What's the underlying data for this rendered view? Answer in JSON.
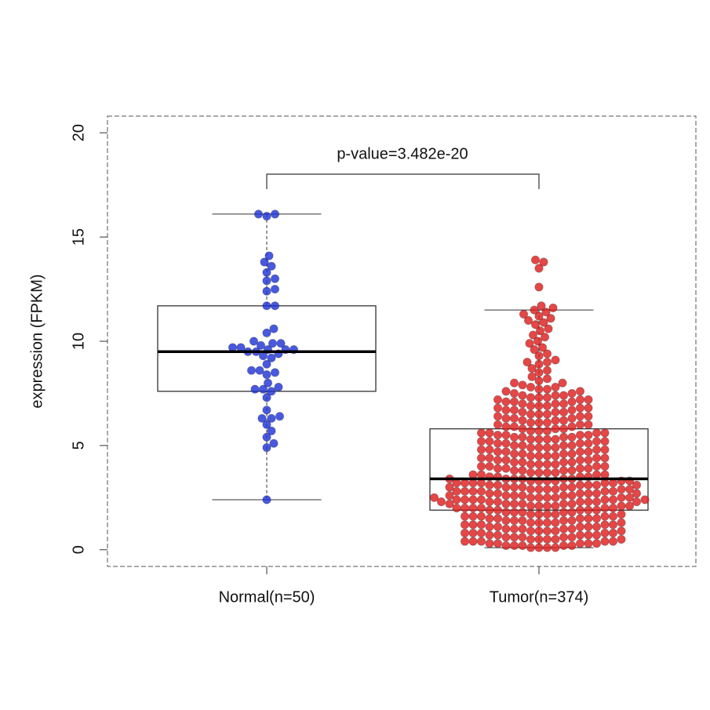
{
  "chart_data": {
    "type": "box",
    "ylabel": "expression (FPKM)",
    "annotation": "p-value=3.482e-20",
    "categories": [
      "Normal(n=50)",
      "Tumor(n=374)"
    ],
    "ylim": [
      -0.8,
      20.8
    ],
    "yticks": [
      0,
      5,
      10,
      15,
      20
    ],
    "series": [
      {
        "color": "#1a2fd8",
        "box": {
          "whisker_low": 2.4,
          "q1": 7.6,
          "median": 9.5,
          "q3": 11.7,
          "whisker_high": 16.1
        },
        "values": [
          16.1,
          16.1,
          16.0,
          14.1,
          13.8,
          13.6,
          13.3,
          13.0,
          12.9,
          12.5,
          12.4,
          11.7,
          11.7,
          10.6,
          10.4,
          10.0,
          9.9,
          9.9,
          9.8,
          9.7,
          9.7,
          9.6,
          9.6,
          9.6,
          9.5,
          9.5,
          9.4,
          9.3,
          9.2,
          8.9,
          8.6,
          8.6,
          8.5,
          8.4,
          8.0,
          7.8,
          7.7,
          7.7,
          7.6,
          7.3,
          6.7,
          6.4,
          6.3,
          6.3,
          6.0,
          5.7,
          5.4,
          5.1,
          4.9,
          2.4
        ]
      },
      {
        "color": "#e01818",
        "box": {
          "whisker_low": 0.1,
          "q1": 1.9,
          "median": 3.4,
          "q3": 5.8,
          "whisker_high": 11.5
        },
        "values": [
          0.1,
          0.1,
          0.1,
          0.1,
          0.2,
          0.2,
          0.2,
          0.2,
          0.2,
          0.3,
          0.3,
          0.3,
          0.3,
          0.3,
          0.4,
          0.4,
          0.4,
          0.4,
          0.4,
          0.5,
          0.5,
          0.5,
          0.5,
          0.5,
          0.6,
          0.6,
          0.6,
          0.6,
          0.6,
          0.7,
          0.7,
          0.7,
          0.7,
          0.7,
          0.8,
          0.8,
          0.8,
          0.8,
          0.8,
          0.9,
          0.9,
          0.9,
          0.9,
          0.9,
          1.0,
          1.0,
          1.0,
          1.0,
          1.0,
          1.1,
          1.1,
          1.1,
          1.1,
          1.1,
          1.2,
          1.2,
          1.2,
          1.2,
          1.2,
          1.3,
          1.3,
          1.3,
          1.3,
          1.3,
          1.4,
          1.4,
          1.4,
          1.4,
          1.4,
          1.5,
          1.5,
          1.5,
          1.5,
          1.5,
          1.6,
          1.6,
          1.6,
          1.6,
          1.6,
          1.7,
          1.7,
          1.7,
          1.7,
          1.7,
          1.8,
          1.8,
          1.8,
          1.8,
          1.8,
          1.9,
          1.9,
          1.9,
          1.9,
          1.9,
          2.0,
          2.0,
          2.0,
          2.0,
          2.0,
          2.0,
          2.1,
          2.1,
          2.1,
          2.1,
          2.1,
          2.1,
          2.2,
          2.2,
          2.2,
          2.2,
          2.2,
          2.2,
          2.3,
          2.3,
          2.3,
          2.3,
          2.3,
          2.3,
          2.3,
          2.4,
          2.4,
          2.4,
          2.4,
          2.4,
          2.4,
          2.4,
          2.5,
          2.5,
          2.5,
          2.5,
          2.5,
          2.5,
          2.5,
          2.6,
          2.6,
          2.6,
          2.6,
          2.6,
          2.6,
          2.7,
          2.7,
          2.7,
          2.7,
          2.7,
          2.7,
          2.8,
          2.8,
          2.8,
          2.8,
          2.8,
          2.8,
          2.9,
          2.9,
          2.9,
          2.9,
          2.9,
          2.9,
          3.0,
          3.0,
          3.0,
          3.0,
          3.0,
          3.0,
          3.1,
          3.1,
          3.1,
          3.1,
          3.1,
          3.1,
          3.2,
          3.2,
          3.2,
          3.2,
          3.2,
          3.2,
          3.3,
          3.3,
          3.3,
          3.3,
          3.3,
          3.3,
          3.4,
          3.4,
          3.4,
          3.4,
          3.4,
          3.4,
          3.5,
          3.5,
          3.5,
          3.5,
          3.6,
          3.6,
          3.6,
          3.6,
          3.7,
          3.7,
          3.7,
          3.7,
          3.8,
          3.8,
          3.8,
          3.8,
          3.9,
          3.9,
          3.9,
          3.9,
          4.0,
          4.0,
          4.0,
          4.0,
          4.1,
          4.1,
          4.1,
          4.1,
          4.2,
          4.2,
          4.2,
          4.2,
          4.3,
          4.3,
          4.3,
          4.3,
          4.4,
          4.4,
          4.4,
          4.4,
          4.5,
          4.5,
          4.5,
          4.5,
          4.6,
          4.6,
          4.6,
          4.6,
          4.7,
          4.7,
          4.7,
          4.7,
          4.8,
          4.8,
          4.8,
          4.8,
          4.9,
          4.9,
          4.9,
          4.9,
          5.0,
          5.0,
          5.0,
          5.0,
          5.1,
          5.1,
          5.1,
          5.1,
          5.2,
          5.2,
          5.2,
          5.2,
          5.3,
          5.3,
          5.3,
          5.3,
          5.4,
          5.4,
          5.4,
          5.4,
          5.5,
          5.5,
          5.5,
          5.5,
          5.6,
          5.6,
          5.6,
          5.6,
          5.7,
          5.7,
          5.7,
          5.8,
          5.8,
          5.8,
          5.9,
          5.9,
          5.9,
          6.0,
          6.0,
          6.0,
          6.1,
          6.1,
          6.1,
          6.2,
          6.2,
          6.2,
          6.3,
          6.3,
          6.3,
          6.4,
          6.4,
          6.4,
          6.5,
          6.5,
          6.5,
          6.6,
          6.6,
          6.6,
          6.7,
          6.7,
          6.7,
          6.8,
          6.8,
          6.8,
          6.9,
          6.9,
          6.9,
          7.0,
          7.0,
          7.0,
          7.1,
          7.1,
          7.1,
          7.2,
          7.2,
          7.2,
          7.3,
          7.3,
          7.3,
          7.4,
          7.4,
          7.4,
          7.5,
          7.5,
          7.6,
          7.6,
          7.7,
          7.7,
          7.8,
          7.8,
          7.9,
          8.0,
          8.1,
          8.2,
          8.3,
          8.5,
          8.6,
          8.7,
          8.9,
          9.0,
          9.1,
          9.3,
          9.4,
          9.6,
          9.7,
          9.9,
          10.0,
          10.2,
          10.3,
          10.5,
          10.6,
          10.8,
          10.9,
          11.0,
          11.1,
          11.2,
          11.3,
          11.4,
          11.5,
          8.0,
          9.0,
          11.6,
          11.7,
          12.6,
          13.5,
          13.8,
          13.9
        ]
      }
    ]
  }
}
